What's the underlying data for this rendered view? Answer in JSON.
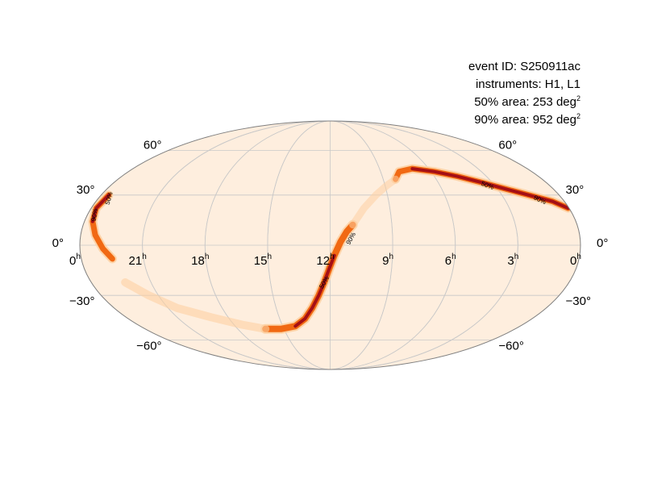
{
  "info": {
    "event_line": "event ID: S250911ac",
    "instruments_line": "instruments: H1, L1",
    "area50_text": "50% area: 253 deg",
    "area90_text": "90% area: 952 deg",
    "area_exponent": "2"
  },
  "map": {
    "projection": "mollweide",
    "ra_ticks": [
      {
        "value": 0,
        "label": "0",
        "suffix": "h"
      },
      {
        "value": 21,
        "label": "21",
        "suffix": "h"
      },
      {
        "value": 18,
        "label": "18",
        "suffix": "h"
      },
      {
        "value": 15,
        "label": "15",
        "suffix": "h"
      },
      {
        "value": 12,
        "label": "12",
        "suffix": "h"
      },
      {
        "value": 9,
        "label": "9",
        "suffix": "h"
      },
      {
        "value": 6,
        "label": "6",
        "suffix": "h"
      },
      {
        "value": 3,
        "label": "3",
        "suffix": "h"
      },
      {
        "value": 0,
        "label": "0",
        "suffix": "h",
        "edge": "right"
      }
    ],
    "dec_ticks": [
      {
        "value": 60,
        "label": "60°"
      },
      {
        "value": 30,
        "label": "30°"
      },
      {
        "value": 0,
        "label": "0°"
      },
      {
        "value": -30,
        "label": "−30°"
      },
      {
        "value": -60,
        "label": "−60°"
      }
    ],
    "contour_labels": [
      "90%",
      "50%"
    ],
    "colors": {
      "background": "#feeede",
      "border": "#7f7f7f",
      "grid": "#c8c8c8",
      "probability_low": "#fdd0a2",
      "probability_mid": "#f16913",
      "probability_high": "#a50f15",
      "probability_peak": "#67000d"
    }
  }
}
